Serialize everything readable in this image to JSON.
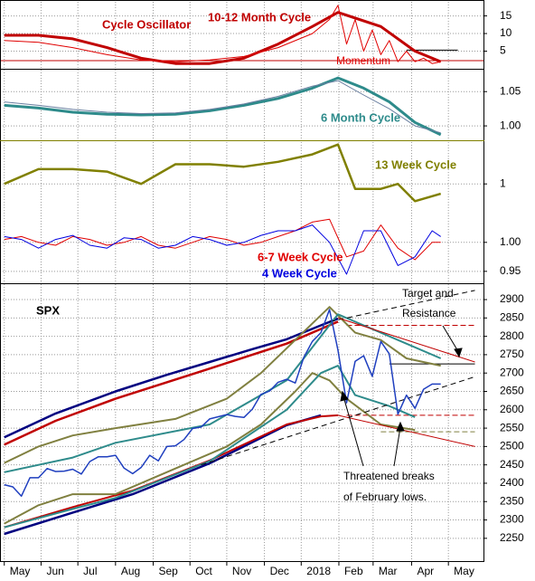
{
  "chart_data": [
    {
      "type": "line",
      "title": "Cycle Oscillator",
      "ylim": [
        0,
        19
      ],
      "yticks": [
        5,
        10,
        15
      ],
      "grid": true,
      "series": [
        {
          "name": "10-12 Month Cycle",
          "color": "#c00000",
          "width": 3,
          "x": [
            0,
            4,
            8,
            12,
            16,
            20,
            24,
            28,
            32,
            36,
            39,
            44,
            48,
            51
          ],
          "values": [
            9.5,
            9.5,
            8.5,
            6,
            3,
            1.5,
            1.5,
            3,
            7,
            12,
            16,
            12,
            5,
            2
          ]
        },
        {
          "name": "Momentum",
          "color": "#e00000",
          "width": 1,
          "x": [
            0,
            4,
            8,
            12,
            16,
            20,
            24,
            28,
            32,
            36,
            38,
            39,
            40,
            41,
            42,
            43,
            44,
            45,
            46,
            47,
            48,
            49,
            50,
            51
          ],
          "values": [
            8,
            7.5,
            6,
            4,
            2.5,
            2,
            2.5,
            3.5,
            6,
            10,
            14,
            18,
            7,
            14,
            5,
            11,
            4,
            8,
            2,
            5,
            2,
            3,
            1.5,
            2
          ]
        }
      ],
      "reference_lines": [
        {
          "value": 2.3,
          "color": "#c00000",
          "from": -0.5,
          "to": 56
        },
        {
          "value": 5.3,
          "color": "#000000",
          "from": 47,
          "to": 53
        }
      ]
    },
    {
      "type": "line",
      "ylim": [
        0.979,
        1.082
      ],
      "yticks": [
        {
          "value": 1.0,
          "label": "1.00"
        },
        1.05
      ],
      "grid": true,
      "series": [
        {
          "name": "6 Month Cycle",
          "color": "#2e8b8b",
          "width": 3,
          "x": [
            0,
            4,
            8,
            12,
            16,
            20,
            24,
            28,
            32,
            36,
            39,
            42,
            45,
            48,
            51
          ],
          "values": [
            1.03,
            1.026,
            1.02,
            1.017,
            1.016,
            1.017,
            1.022,
            1.03,
            1.04,
            1.055,
            1.07,
            1.055,
            1.035,
            1.005,
            0.987
          ]
        },
        {
          "color": "#6a7fa0",
          "width": 1,
          "x": [
            0,
            4,
            8,
            12,
            16,
            20,
            24,
            28,
            32,
            36,
            39,
            42,
            45,
            48,
            51
          ],
          "values": [
            1.035,
            1.03,
            1.024,
            1.02,
            1.018,
            1.019,
            1.024,
            1.032,
            1.043,
            1.058,
            1.066,
            1.045,
            1.025,
            1.0,
            0.99
          ]
        }
      ]
    },
    {
      "type": "line",
      "ylim": [
        0.931,
        1.173
      ],
      "yticks": [
        0.95,
        {
          "value": 1.0,
          "label": "1.00"
        }
      ],
      "y2lim": [
        0.8,
        1.085
      ],
      "y2ticks": [
        1
      ],
      "grid": true,
      "series": [
        {
          "name": "13 Week Cycle",
          "color": "#808000",
          "width": 2.5,
          "axis": "y2",
          "x": [
            0,
            4,
            8,
            12,
            16,
            20,
            24,
            28,
            32,
            36,
            39,
            41,
            44,
            46,
            48,
            51
          ],
          "values": [
            1.0,
            1.03,
            1.03,
            1.025,
            1.0,
            1.04,
            1.04,
            1.035,
            1.045,
            1.06,
            1.08,
            0.99,
            0.99,
            1.0,
            0.965,
            0.98
          ]
        },
        {
          "name": "6-7 Week Cycle",
          "color": "#e00000",
          "width": 1,
          "x": [
            0,
            2,
            4,
            6,
            8,
            10,
            12,
            14,
            16,
            18,
            20,
            22,
            24,
            26,
            28,
            30,
            32,
            34,
            36,
            38,
            40,
            42,
            44,
            46,
            48,
            50,
            51
          ],
          "values": [
            1.005,
            1.01,
            1.0,
            0.995,
            1.01,
            1.005,
            0.995,
            1.0,
            1.01,
            0.995,
            0.99,
            1.0,
            1.01,
            1.005,
            0.995,
            1.0,
            1.01,
            1.02,
            1.035,
            1.04,
            0.975,
            0.985,
            1.03,
            0.99,
            0.97,
            1.0,
            1.0
          ]
        },
        {
          "name": "4 Week Cycle",
          "color": "#0000e0",
          "width": 1,
          "x": [
            0,
            2,
            4,
            6,
            8,
            10,
            12,
            14,
            16,
            18,
            20,
            22,
            24,
            26,
            28,
            30,
            32,
            34,
            36,
            38,
            40,
            42,
            44,
            46,
            48,
            50,
            51
          ],
          "values": [
            1.01,
            1.005,
            0.99,
            1.005,
            1.012,
            0.995,
            0.99,
            1.008,
            1.005,
            0.99,
            0.995,
            1.01,
            1.005,
            0.995,
            1.0,
            1.012,
            1.02,
            1.02,
            1.03,
            1.0,
            0.945,
            1.02,
            1.02,
            0.96,
            0.975,
            1.02,
            1.01
          ]
        }
      ]
    },
    {
      "type": "line",
      "xlim": [
        -0.5,
        56
      ],
      "ylim": [
        2188,
        2942
      ],
      "grid": true,
      "yticks": [
        2250,
        2300,
        2350,
        2400,
        2450,
        2500,
        2550,
        2600,
        2650,
        2700,
        2750,
        2800,
        2850,
        2900
      ],
      "xticks": [
        {
          "value": 0,
          "label": "May"
        },
        {
          "value": 4.3,
          "label": "Jun"
        },
        {
          "value": 8.6,
          "label": "Jul"
        },
        {
          "value": 13,
          "label": "Aug"
        },
        {
          "value": 17.4,
          "label": "Sep"
        },
        {
          "value": 21.7,
          "label": "Oct"
        },
        {
          "value": 26,
          "label": "Nov"
        },
        {
          "value": 30.4,
          "label": "Dec"
        },
        {
          "value": 34.7,
          "label": "2018"
        },
        {
          "value": 39.1,
          "label": "Feb"
        },
        {
          "value": 43.1,
          "label": "Mar"
        },
        {
          "value": 47.6,
          "label": "Apr"
        },
        {
          "value": 51.9,
          "label": "May"
        }
      ],
      "annotations": [
        "Target and",
        "Resistance",
        "Threatened breaks",
        "of February lows."
      ],
      "series": [
        {
          "name": "SPX",
          "color": "#1f3fbf",
          "width": 1.5,
          "x": [
            0,
            1,
            2,
            3,
            4,
            5,
            6,
            7,
            8,
            9,
            10,
            11,
            12,
            13,
            14,
            15,
            16,
            17,
            18,
            19,
            20,
            21,
            22,
            23,
            24,
            25,
            26,
            27,
            28,
            29,
            30,
            31,
            32,
            33,
            34,
            35,
            36,
            37,
            38,
            39,
            40,
            41,
            42,
            43,
            44,
            45,
            46,
            47,
            48,
            49,
            50,
            51
          ],
          "values": [
            2396,
            2390,
            2365,
            2415,
            2415,
            2440,
            2432,
            2433,
            2438,
            2425,
            2459,
            2472,
            2472,
            2476,
            2441,
            2426,
            2443,
            2476,
            2461,
            2500,
            2502,
            2519,
            2549,
            2553,
            2575,
            2581,
            2587,
            2582,
            2579,
            2602,
            2642,
            2651,
            2675,
            2683,
            2673,
            2743,
            2786,
            2810,
            2873,
            2762,
            2619,
            2732,
            2747,
            2691,
            2786,
            2752,
            2588,
            2640,
            2604,
            2656,
            2670,
            2670
          ]
        },
        {
          "color": "#000080",
          "width": 2.5,
          "x": [
            0,
            6,
            13,
            19,
            24,
            29,
            33,
            37,
            39
          ],
          "values": [
            2525,
            2590,
            2650,
            2695,
            2730,
            2765,
            2792,
            2830,
            2848
          ]
        },
        {
          "color": "#000080",
          "width": 2.5,
          "x": [
            0,
            8,
            15,
            24,
            33,
            37
          ],
          "values": [
            2262,
            2320,
            2370,
            2454,
            2558,
            2585
          ]
        },
        {
          "color": "#c00000",
          "width": 2.5,
          "x": [
            0,
            6,
            13,
            19,
            24,
            29,
            33,
            37,
            39
          ],
          "values": [
            2505,
            2570,
            2630,
            2675,
            2712,
            2750,
            2780,
            2820,
            2840
          ]
        },
        {
          "color": "#c00000",
          "width": 2,
          "x": [
            0,
            8,
            15,
            24,
            33,
            37,
            39
          ],
          "values": [
            2280,
            2335,
            2380,
            2462,
            2560,
            2582,
            2585
          ]
        },
        {
          "color": "#808040",
          "width": 2,
          "x": [
            0,
            4,
            8,
            13,
            20,
            26,
            30,
            34,
            38,
            41,
            44,
            47,
            51
          ],
          "values": [
            2455,
            2500,
            2530,
            2550,
            2575,
            2630,
            2700,
            2790,
            2880,
            2810,
            2790,
            2740,
            2720
          ]
        },
        {
          "color": "#808040",
          "width": 2,
          "x": [
            0,
            4,
            8,
            13,
            20,
            26,
            30,
            34,
            36,
            38,
            40,
            44,
            48
          ],
          "values": [
            2290,
            2340,
            2370,
            2370,
            2440,
            2500,
            2560,
            2650,
            2700,
            2680,
            2630,
            2560,
            2545
          ]
        },
        {
          "color": "#2e8b8b",
          "width": 2,
          "x": [
            0,
            8,
            13,
            24,
            33,
            37,
            39,
            41,
            45,
            48
          ],
          "values": [
            2280,
            2330,
            2360,
            2460,
            2600,
            2700,
            2720,
            2640,
            2610,
            2580
          ]
        },
        {
          "color": "#2e8b8b",
          "width": 2,
          "x": [
            0,
            8,
            13,
            24,
            33,
            37,
            39,
            42,
            46,
            51
          ],
          "values": [
            2430,
            2470,
            2510,
            2560,
            2680,
            2800,
            2860,
            2830,
            2790,
            2740
          ]
        },
        {
          "color": "#000000",
          "width": 1,
          "dash": true,
          "x": [
            23,
            55
          ],
          "values": [
            2450,
            2690
          ]
        },
        {
          "color": "#000000",
          "width": 1,
          "dash": true,
          "x": [
            38,
            55
          ],
          "values": [
            2840,
            2925
          ]
        },
        {
          "color": "#c00000",
          "width": 1,
          "x": [
            39,
            55
          ],
          "values": [
            2850,
            2730
          ]
        },
        {
          "color": "#c00000",
          "width": 1,
          "x": [
            39,
            55
          ],
          "values": [
            2585,
            2500
          ]
        }
      ],
      "reference_lines": [
        {
          "value": 2830,
          "color": "#c00000",
          "dash": true,
          "from": 40,
          "to": 55
        },
        {
          "value": 2725,
          "color": "#000000",
          "from": 45,
          "to": 55
        },
        {
          "value": 2585,
          "color": "#c00000",
          "dash": true,
          "from": 40,
          "to": 55
        },
        {
          "value": 2540,
          "color": "#808040",
          "dash": true,
          "from": 44,
          "to": 55
        }
      ]
    }
  ]
}
